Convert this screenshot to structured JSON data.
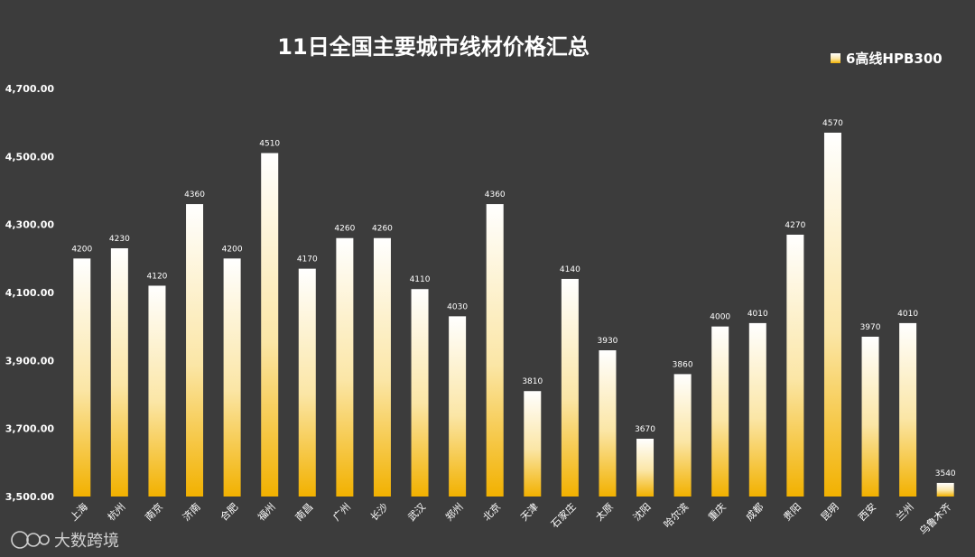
{
  "chart_data": {
    "type": "bar",
    "title": "11日全国主要城市线材价格汇总",
    "categories": [
      "上海",
      "杭州",
      "南京",
      "济南",
      "合肥",
      "福州",
      "南昌",
      "广州",
      "长沙",
      "武汉",
      "郑州",
      "北京",
      "天津",
      "石家庄",
      "太原",
      "沈阳",
      "哈尔滨",
      "重庆",
      "成都",
      "贵阳",
      "昆明",
      "西安",
      "兰州",
      "乌鲁木齐"
    ],
    "series": [
      {
        "name": "6高线HPB300",
        "values": [
          4200,
          4230,
          4120,
          4360,
          4200,
          4510,
          4170,
          4260,
          4260,
          4110,
          4030,
          4360,
          3810,
          4140,
          3930,
          3670,
          3860,
          4000,
          4010,
          4270,
          4570,
          3970,
          4010,
          3540
        ],
        "data_labels": [
          "4200",
          "4230",
          "4120",
          "4360",
          "4200",
          "4510",
          "4170",
          "4260",
          "4260",
          "4110",
          "4030",
          "4360",
          "3810",
          "4140",
          "3930",
          "3670",
          "3860",
          "4000",
          "4010",
          "4270",
          "4570",
          "3970",
          "4010",
          "3540"
        ]
      }
    ],
    "ylim": [
      3500,
      4700
    ],
    "yticks": [
      3500,
      3700,
      3900,
      4100,
      4300,
      4500,
      4700
    ],
    "ytick_labels": [
      "3,500.00",
      "3,700.00",
      "3,900.00",
      "4,100.00",
      "4,300.00",
      "4,500.00",
      "4,700.00"
    ],
    "grid": false,
    "legend_position": "top-right",
    "colors": {
      "background": "#3c3c3c",
      "bar_top": "#ffffff",
      "bar_bottom": "#f2b100",
      "text": "#ffffff"
    }
  },
  "watermark": {
    "text": "大数跨境"
  }
}
